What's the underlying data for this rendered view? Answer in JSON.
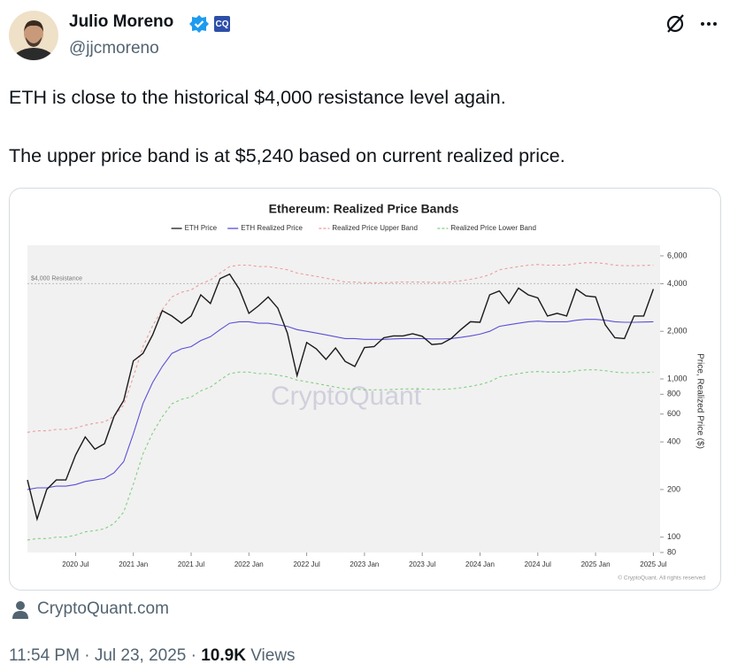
{
  "header": {
    "name": "Julio Moreno",
    "handle": "@jjcmoreno"
  },
  "text": [
    "ETH is close to the historical $4,000 resistance level again.",
    "The upper price band is at $5,240 based on current realized price."
  ],
  "chart_data": {
    "type": "line",
    "title": "Ethereum: Realized Price Bands",
    "x": [
      "2020-02",
      "2020-03",
      "2020-04",
      "2020-05",
      "2020-06",
      "2020-07",
      "2020-08",
      "2020-09",
      "2020-10",
      "2020-11",
      "2020-12",
      "2021-01",
      "2021-02",
      "2021-03",
      "2021-04",
      "2021-05",
      "2021-06",
      "2021-07",
      "2021-08",
      "2021-09",
      "2021-10",
      "2021-11",
      "2021-12",
      "2022-01",
      "2022-02",
      "2022-03",
      "2022-04",
      "2022-05",
      "2022-06",
      "2022-07",
      "2022-08",
      "2022-09",
      "2022-10",
      "2022-11",
      "2022-12",
      "2023-01",
      "2023-02",
      "2023-03",
      "2023-04",
      "2023-05",
      "2023-06",
      "2023-07",
      "2023-08",
      "2023-09",
      "2023-10",
      "2023-11",
      "2023-12",
      "2024-01",
      "2024-02",
      "2024-03",
      "2024-04",
      "2024-05",
      "2024-06",
      "2024-07",
      "2024-08",
      "2024-09",
      "2024-10",
      "2024-11",
      "2024-12",
      "2025-01",
      "2025-02",
      "2025-03",
      "2025-04",
      "2025-05",
      "2025-06",
      "2025-07"
    ],
    "series": [
      {
        "name": "ETH Price",
        "color": "#1a1a1a",
        "style": "solid",
        "values": [
          230,
          130,
          200,
          230,
          230,
          330,
          430,
          360,
          390,
          580,
          730,
          1300,
          1450,
          1900,
          2700,
          2500,
          2250,
          2500,
          3400,
          3000,
          4300,
          4600,
          3700,
          2600,
          2900,
          3300,
          2800,
          1950,
          1050,
          1700,
          1550,
          1330,
          1570,
          1290,
          1200,
          1580,
          1600,
          1820,
          1870,
          1870,
          1930,
          1860,
          1650,
          1670,
          1800,
          2050,
          2300,
          2280,
          3400,
          3600,
          3000,
          3750,
          3400,
          3250,
          2500,
          2600,
          2500,
          3700,
          3350,
          3300,
          2200,
          1820,
          1800,
          2500,
          2500,
          3700
        ]
      },
      {
        "name": "ETH Realized Price",
        "color": "#5b4fd6",
        "style": "solid",
        "values": [
          200,
          205,
          205,
          210,
          210,
          215,
          225,
          230,
          235,
          255,
          300,
          450,
          700,
          950,
          1200,
          1450,
          1550,
          1600,
          1750,
          1850,
          2050,
          2250,
          2300,
          2300,
          2250,
          2250,
          2200,
          2150,
          2050,
          2000,
          1950,
          1900,
          1850,
          1800,
          1800,
          1780,
          1780,
          1780,
          1790,
          1800,
          1800,
          1800,
          1790,
          1790,
          1800,
          1830,
          1870,
          1920,
          2000,
          2150,
          2200,
          2250,
          2300,
          2320,
          2300,
          2300,
          2300,
          2350,
          2380,
          2380,
          2350,
          2300,
          2280,
          2280,
          2290,
          2300
        ]
      },
      {
        "name": "Realized Price Upper Band",
        "color": "#ef9a9a",
        "style": "dashed",
        "values": [
          460,
          470,
          470,
          480,
          480,
          490,
          510,
          525,
          535,
          580,
          685,
          1030,
          1600,
          2170,
          2740,
          3300,
          3530,
          3650,
          3990,
          4220,
          4670,
          5130,
          5240,
          5240,
          5130,
          5130,
          5020,
          4900,
          4670,
          4560,
          4450,
          4330,
          4220,
          4100,
          4100,
          4060,
          4060,
          4060,
          4080,
          4100,
          4100,
          4100,
          4080,
          4080,
          4100,
          4170,
          4260,
          4380,
          4560,
          4900,
          5020,
          5130,
          5240,
          5290,
          5240,
          5240,
          5240,
          5360,
          5430,
          5430,
          5360,
          5240,
          5200,
          5200,
          5220,
          5240
        ]
      },
      {
        "name": "Realized Price Lower Band",
        "color": "#7fcf7f",
        "style": "dashed",
        "values": [
          96,
          98,
          98,
          100,
          100,
          103,
          108,
          110,
          113,
          122,
          144,
          216,
          336,
          456,
          576,
          696,
          744,
          768,
          840,
          888,
          984,
          1080,
          1104,
          1104,
          1080,
          1080,
          1056,
          1032,
          984,
          960,
          936,
          912,
          888,
          864,
          864,
          854,
          854,
          854,
          859,
          864,
          864,
          864,
          859,
          859,
          864,
          878,
          898,
          922,
          960,
          1032,
          1056,
          1080,
          1104,
          1114,
          1104,
          1104,
          1104,
          1128,
          1142,
          1142,
          1128,
          1104,
          1094,
          1094,
          1099,
          1104
        ]
      }
    ],
    "xlim": [
      "2020-02",
      "2025-07"
    ],
    "xticks": [
      {
        "value": "2020-07",
        "label": "2020 Jul"
      },
      {
        "value": "2021-01",
        "label": "2021 Jan"
      },
      {
        "value": "2021-07",
        "label": "2021 Jul"
      },
      {
        "value": "2022-01",
        "label": "2022 Jan"
      },
      {
        "value": "2022-07",
        "label": "2022 Jul"
      },
      {
        "value": "2023-01",
        "label": "2023 Jan"
      },
      {
        "value": "2023-07",
        "label": "2023 Jul"
      },
      {
        "value": "2024-01",
        "label": "2024 Jan"
      },
      {
        "value": "2024-07",
        "label": "2024 Jul"
      },
      {
        "value": "2025-01",
        "label": "2025 Jan"
      },
      {
        "value": "2025-07",
        "label": "2025 Jul"
      }
    ],
    "ylim": [
      80,
      7000
    ],
    "log_y": true,
    "yticks": [
      80,
      100,
      200,
      400,
      600,
      800,
      {
        "value": 1000,
        "label": "1,000"
      },
      {
        "value": 2000,
        "label": "2,000"
      },
      {
        "value": 4000,
        "label": "4,000"
      },
      {
        "value": 6000,
        "label": "6,000"
      }
    ],
    "y_label": "Price, Realized Price ($)",
    "annotation": {
      "text": "$4,000 Resistance",
      "value": 4000
    },
    "watermark": "CryptoQuant",
    "copyright": "© CryptoQuant. All rights reserved",
    "legend": "top"
  },
  "source": "CryptoQuant.com",
  "footer": {
    "time": "11:54 PM",
    "date": "Jul 23, 2025",
    "views": "10.9K",
    "views_label": "Views"
  }
}
